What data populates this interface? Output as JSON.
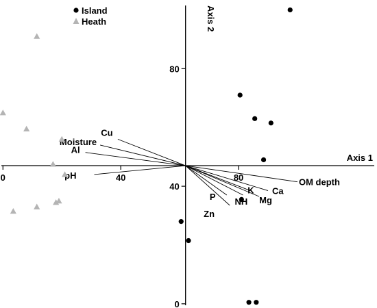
{
  "chart_data": {
    "type": "scatter",
    "xlabel": "Axis 1",
    "ylabel": "Axis 2",
    "xlim": [
      -1,
      127
    ],
    "ylim": [
      -0.5,
      101.5
    ],
    "origin": [
      62,
      47
    ],
    "legend_position": "top-left",
    "x_ticks": [
      {
        "value": 0,
        "label": "0"
      },
      {
        "value": 40,
        "label": "40"
      },
      {
        "value": 80,
        "label": "80"
      }
    ],
    "y_ticks": [
      {
        "value": 0,
        "label": "0"
      },
      {
        "value": 40,
        "label": "40"
      },
      {
        "value": 80,
        "label": "80"
      }
    ],
    "series": [
      {
        "name": "Island",
        "marker": "circle",
        "color": "#000000",
        "points": [
          [
            97.5,
            100
          ],
          [
            80.5,
            71
          ],
          [
            85.5,
            63
          ],
          [
            91,
            61.5
          ],
          [
            88.5,
            49
          ],
          [
            81,
            35.5
          ],
          [
            60.5,
            28
          ],
          [
            63,
            21.5
          ],
          [
            83.5,
            0.5
          ],
          [
            86,
            0.5
          ]
        ]
      },
      {
        "name": "Heath",
        "marker": "triangle",
        "color": "#b4b4b4",
        "points": [
          [
            11.5,
            91
          ],
          [
            0,
            65
          ],
          [
            8,
            59.5
          ],
          [
            20,
            56
          ],
          [
            17,
            47.5
          ],
          [
            21,
            44
          ],
          [
            3.5,
            31.5
          ],
          [
            11.5,
            33
          ],
          [
            18,
            34.5
          ],
          [
            19,
            35
          ]
        ]
      }
    ],
    "vectors": [
      {
        "label": "Moisture",
        "end": [
          33,
          54
        ]
      },
      {
        "label": "Cu",
        "end": [
          39,
          56
        ]
      },
      {
        "label": "Al",
        "end": [
          28,
          51.5
        ]
      },
      {
        "label": "pH",
        "end": [
          31,
          44
        ]
      },
      {
        "label": "OM depth",
        "end": [
          100,
          41.5
        ]
      },
      {
        "label": "Ca",
        "end": [
          90,
          38.5
        ]
      },
      {
        "label": "K",
        "end": [
          84,
          38.5
        ]
      },
      {
        "label": "Mg",
        "end": [
          87,
          36.5
        ]
      },
      {
        "label": "P",
        "end": [
          76,
          37
        ]
      },
      {
        "label": "NH",
        "end": [
          81.5,
          37
        ]
      },
      {
        "label": "Zn",
        "end": [
          77,
          33.5
        ]
      }
    ]
  }
}
